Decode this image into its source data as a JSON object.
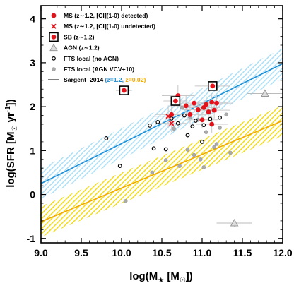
{
  "chart_data": {
    "type": "scatter",
    "title": "",
    "xlabel": "log(M",
    "xlabel_sub": "★",
    "xlabel_unit_open": " [M",
    "xlabel_unit_sub": "☉",
    "xlabel_unit_close": "])",
    "ylabel": "log(SFR [M",
    "ylabel_sub": "☉",
    "ylabel_mid": " yr",
    "ylabel_sup": "-1",
    "ylabel_close": "])",
    "xlim": [
      9.0,
      12.0
    ],
    "ylim": [
      -1.1,
      4.3
    ],
    "xticks": [
      "9.0",
      "9.5",
      "10.0",
      "10.5",
      "11.0",
      "11.5",
      "12.0"
    ],
    "yticks": [
      "-1",
      "0",
      "1",
      "2",
      "3",
      "4"
    ],
    "grid": false,
    "legend_position": "top-left",
    "colors": {
      "ms": "#e3121b",
      "sb_box": "#000000",
      "agn": "#999999",
      "fts_noagn": "#000000",
      "fts_agn": "#aaaaaa",
      "sargent_z12": "#1a8fd8",
      "sargent_z002": "#f2a900",
      "band_z12": "#aee0f7",
      "band_z002": "#f2dc1e"
    },
    "legend": [
      {
        "key": "ms",
        "label": "MS (z∼1.2, [CI](1-0) detected)"
      },
      {
        "key": "ms_undet",
        "label": "MS (z∼1.2, [CI](1-0) undetected)"
      },
      {
        "key": "sb",
        "label": "SB (z∼1.2)"
      },
      {
        "key": "agn",
        "label": "AGN (z∼1.2)"
      },
      {
        "key": "fts_noagn",
        "label": "FTS local (no AGN)"
      },
      {
        "key": "fts_agn",
        "label": "FTS local (AGN VCV+10)"
      },
      {
        "key": "sargent",
        "label": "Sargent+2014 ",
        "label_z1": "(z=1.2,",
        "label_z2": " z=0.02)"
      }
    ],
    "series": [
      {
        "key": "ms",
        "points": [
          {
            "x": 10.8,
            "y": 2.02,
            "xerr": 0.2,
            "yerr": 0.25
          },
          {
            "x": 10.85,
            "y": 1.82,
            "xerr": 0.25,
            "yerr": 0.2
          },
          {
            "x": 10.9,
            "y": 2.08,
            "xerr": 0.2,
            "yerr": 0.2
          },
          {
            "x": 10.95,
            "y": 1.93,
            "xerr": 0.2,
            "yerr": 0.2
          },
          {
            "x": 11.02,
            "y": 1.98,
            "xerr": 0.2,
            "yerr": 0.2
          },
          {
            "x": 11.05,
            "y": 2.05,
            "xerr": 0.2,
            "yerr": 0.2
          },
          {
            "x": 11.08,
            "y": 1.88,
            "xerr": 0.2,
            "yerr": 0.2
          },
          {
            "x": 11.12,
            "y": 2.1,
            "xerr": 0.2,
            "yerr": 0.2
          },
          {
            "x": 11.15,
            "y": 1.92,
            "xerr": 0.2,
            "yerr": 0.2
          },
          {
            "x": 11.18,
            "y": 2.08,
            "xerr": 0.2,
            "yerr": 0.2
          },
          {
            "x": 11.0,
            "y": 1.7,
            "xerr": 0.2,
            "yerr": 0.2
          },
          {
            "x": 10.62,
            "y": 1.82,
            "xerr": 0.2,
            "yerr": 0.2
          },
          {
            "x": 10.7,
            "y": 2.25,
            "xerr": 0.2,
            "yerr": 0.25
          },
          {
            "x": 11.12,
            "y": 1.6,
            "xerr": 0.2,
            "yerr": 0.2
          }
        ]
      },
      {
        "key": "ms_undet",
        "points": [
          {
            "x": 10.58,
            "y": 1.78,
            "xerr": 0.2,
            "yerr": 0.25
          },
          {
            "x": 10.62,
            "y": 1.62,
            "xerr": 0.2,
            "yerr": 0.2
          }
        ]
      },
      {
        "key": "sb",
        "points": [
          {
            "x": 10.03,
            "y": 2.37,
            "xerr": 0.1,
            "yerr": 0.0
          },
          {
            "x": 10.67,
            "y": 2.13,
            "xerr": 0.15,
            "yerr": 0.0
          },
          {
            "x": 11.13,
            "y": 2.47,
            "xerr": 0.22,
            "yerr": 0.0
          }
        ]
      },
      {
        "key": "agn",
        "points": [
          {
            "x": 11.78,
            "y": 2.3,
            "xerr": 0.22,
            "yerr": 0.08
          },
          {
            "x": 11.4,
            "y": -0.65,
            "xerr": 0.22,
            "yerr": 0.08
          }
        ]
      },
      {
        "key": "fts_noagn",
        "points": [
          {
            "x": 9.81,
            "y": 1.28
          },
          {
            "x": 9.98,
            "y": 0.65
          },
          {
            "x": 10.35,
            "y": 1.57
          },
          {
            "x": 10.4,
            "y": 1.05
          },
          {
            "x": 10.45,
            "y": 1.65
          },
          {
            "x": 10.55,
            "y": 1.03
          },
          {
            "x": 10.62,
            "y": 1.73
          },
          {
            "x": 10.7,
            "y": 1.62
          },
          {
            "x": 10.82,
            "y": 1.35
          },
          {
            "x": 10.88,
            "y": 1.55
          },
          {
            "x": 10.92,
            "y": 1.68
          },
          {
            "x": 11.0,
            "y": 1.2
          },
          {
            "x": 11.1,
            "y": 1.72
          },
          {
            "x": 11.22,
            "y": 1.75
          },
          {
            "x": 10.78,
            "y": 1.8
          },
          {
            "x": 11.02,
            "y": 1.58
          }
        ]
      },
      {
        "key": "fts_agn",
        "points": [
          {
            "x": 10.38,
            "y": 0.5
          },
          {
            "x": 10.55,
            "y": 0.78
          },
          {
            "x": 10.82,
            "y": 1.02
          },
          {
            "x": 10.9,
            "y": 0.9
          },
          {
            "x": 11.02,
            "y": 0.62
          },
          {
            "x": 11.15,
            "y": 1.08
          },
          {
            "x": 11.3,
            "y": 1.82
          },
          {
            "x": 11.22,
            "y": 1.52
          },
          {
            "x": 10.72,
            "y": 0.65
          },
          {
            "x": 10.05,
            "y": -0.15
          },
          {
            "x": 11.35,
            "y": 0.95
          },
          {
            "x": 10.65,
            "y": 1.5
          },
          {
            "x": 10.95,
            "y": 1.7
          },
          {
            "x": 11.05,
            "y": 1.42
          },
          {
            "x": 10.85,
            "y": 1.76
          },
          {
            "x": 10.75,
            "y": 1.98
          },
          {
            "x": 11.18,
            "y": 1.15
          },
          {
            "x": 10.98,
            "y": 0.8
          }
        ]
      }
    ],
    "sargent_lines": [
      {
        "key": "z12",
        "x": [
          9.0,
          12.0
        ],
        "y": [
          0.25,
          2.98
        ],
        "band": 0.35
      },
      {
        "key": "z002",
        "x": [
          9.0,
          12.0
        ],
        "y": [
          -0.62,
          1.68
        ],
        "band": 0.35
      }
    ]
  }
}
